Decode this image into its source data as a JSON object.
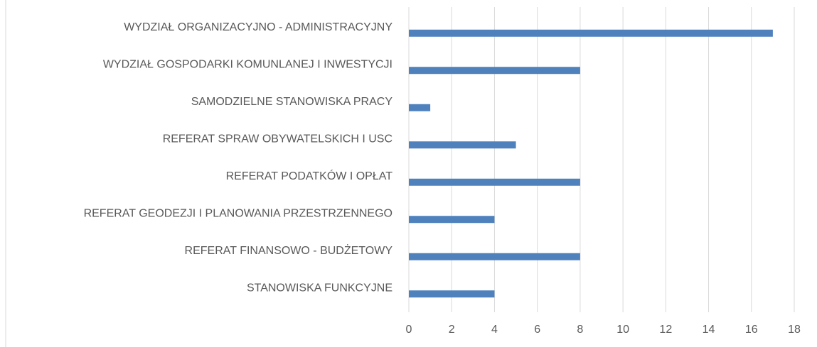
{
  "chart_data": {
    "type": "bar",
    "orientation": "horizontal",
    "categories": [
      "WYDZIAŁ ORGANIZACYJNO - ADMINISTRACYJNY",
      "WYDZIAŁ GOSPODARKI KOMUNLANEJ I INWESTYCJI",
      "SAMODZIELNE STANOWISKA PRACY",
      "REFERAT SPRAW OBYWATELSKICH I USC",
      "REFERAT PODATKÓW I OPŁAT",
      "REFERAT GEODEZJI I PLANOWANIA PRZESTRZENNEGO",
      "REFERAT FINANSOWO - BUDŻETOWY",
      "STANOWISKA FUNKCYJNE"
    ],
    "values": [
      17,
      8,
      1,
      5,
      8,
      4,
      8,
      4
    ],
    "color": "#4f81bd",
    "xlim": [
      0,
      18
    ],
    "xticks": [
      0,
      2,
      4,
      6,
      8,
      10,
      12,
      14,
      16,
      18
    ],
    "grid": true
  }
}
